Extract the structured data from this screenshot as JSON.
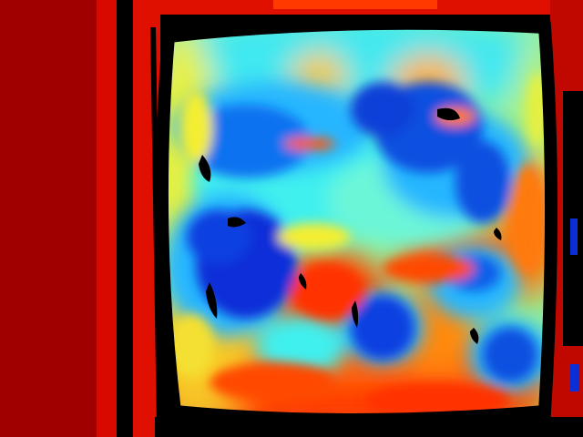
{
  "image": {
    "kind": "depth-map",
    "colormap": "jet",
    "palette": {
      "deep_red": "#7a0000",
      "red": "#e01000",
      "orange_red": "#ff4a00",
      "orange": "#ff9a10",
      "yellow": "#f4ee30",
      "yellow_green": "#b8f070",
      "cyan": "#3ff0ee",
      "light_blue": "#26b6ff",
      "blue": "#0a72f0",
      "deep_blue": "#0a2fd8",
      "invalid": "#000000"
    },
    "regions": [
      "left-wall-far",
      "black-frame",
      "object-face",
      "top-strip",
      "right-edge"
    ]
  }
}
